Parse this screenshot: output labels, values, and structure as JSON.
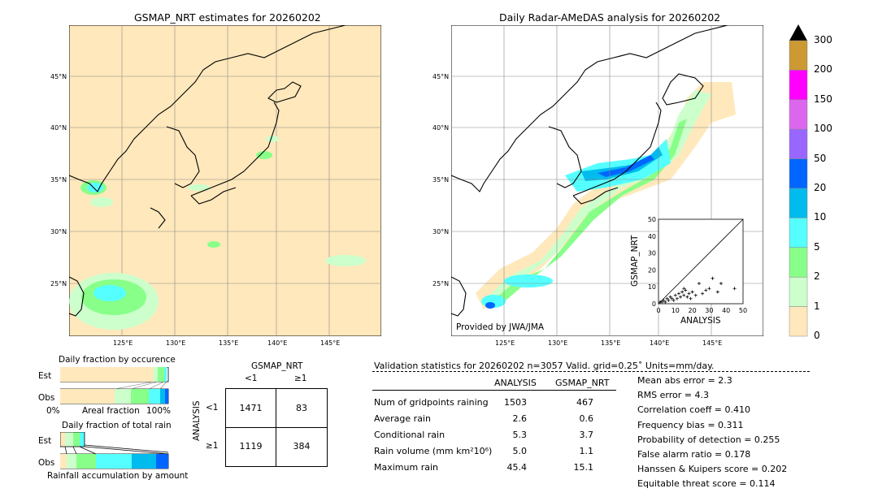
{
  "maps": {
    "left_title": "GSMAP_NRT estimates for 20260202",
    "right_title": "Daily Radar-AMeDAS analysis for 20260202",
    "lat_labels": [
      "45°N",
      "40°N",
      "35°N",
      "30°N",
      "25°N"
    ],
    "lon_labels": [
      "125°E",
      "130°E",
      "135°E",
      "140°E",
      "145°E"
    ],
    "provided_by": "Provided by JWA/JMA"
  },
  "colorbar": {
    "levels": [
      "300",
      "200",
      "150",
      "100",
      "50",
      "20",
      "10",
      "5",
      "2",
      "1",
      "0"
    ],
    "colors": [
      "#cc9933",
      "#ff00ff",
      "#dd66ee",
      "#9966ff",
      "#0066ff",
      "#00bbee",
      "#55ffff",
      "#88ff88",
      "#ccffcc",
      "#ffe8bb"
    ]
  },
  "scatter": {
    "ylabel": "GSMAP_NRT",
    "xlabel": "ANALYSIS",
    "ticks": [
      "0",
      "10",
      "20",
      "30",
      "40",
      "50"
    ]
  },
  "fraction": {
    "occurrence_title": "Daily fraction by occurence",
    "total_title": "Daily fraction of total rain",
    "est": "Est",
    "obs": "Obs",
    "pct0": "0%",
    "areal": "Areal fraction",
    "pct100": "100%",
    "accum": "Rainfall accumulation by amount"
  },
  "contingency": {
    "title": "GSMAP_NRT",
    "col_lt1": "<1",
    "col_ge1": "≥1",
    "row_axis": "ANALYSIS",
    "row_lt1": "<1",
    "row_ge1": "≥1",
    "a": "1471",
    "b": "83",
    "c": "1119",
    "d": "384"
  },
  "stats": {
    "header": "Validation statistics for 20260202  n=3057 Valid. grid=0.25˚ Units=mm/day.",
    "col_analysis": "ANALYSIS",
    "col_gsmap": "GSMAP_NRT",
    "rows": [
      {
        "label": "Num of gridpoints raining",
        "analysis": "1503",
        "gsmap": "467"
      },
      {
        "label": "Average rain",
        "analysis": "2.6",
        "gsmap": "0.6"
      },
      {
        "label": "Conditional rain",
        "analysis": "5.3",
        "gsmap": "3.7"
      },
      {
        "label": "Rain volume (mm km²10⁶)",
        "analysis": "5.0",
        "gsmap": "1.1"
      },
      {
        "label": "Maximum rain",
        "analysis": "45.4",
        "gsmap": "15.1"
      }
    ],
    "scores": [
      "Mean abs error =    2.3",
      "RMS error =    4.3",
      "Correlation coeff =  0.410",
      "Frequency bias =  0.311",
      "Probability of detection =  0.255",
      "False alarm ratio =  0.178",
      "Hanssen & Kuipers score =  0.202",
      "Equitable threat score =  0.114"
    ]
  },
  "chart_data": {
    "type": "scatter",
    "x_label": "ANALYSIS",
    "y_label": "GSMAP_NRT",
    "xlim": [
      0,
      50
    ],
    "ylim": [
      0,
      50
    ],
    "points": [
      [
        1,
        1
      ],
      [
        2,
        1
      ],
      [
        3,
        2
      ],
      [
        4,
        1
      ],
      [
        5,
        3
      ],
      [
        6,
        2
      ],
      [
        7,
        4
      ],
      [
        8,
        3
      ],
      [
        9,
        2
      ],
      [
        10,
        5
      ],
      [
        11,
        3
      ],
      [
        12,
        6
      ],
      [
        13,
        4
      ],
      [
        14,
        7
      ],
      [
        15,
        5
      ],
      [
        16,
        8
      ],
      [
        17,
        4
      ],
      [
        18,
        6
      ],
      [
        19,
        3
      ],
      [
        20,
        7
      ],
      [
        22,
        5
      ],
      [
        24,
        12
      ],
      [
        26,
        6
      ],
      [
        28,
        8
      ],
      [
        30,
        9
      ],
      [
        32,
        15
      ],
      [
        35,
        7
      ],
      [
        37,
        12
      ],
      [
        45,
        9
      ],
      [
        15,
        9
      ]
    ]
  }
}
